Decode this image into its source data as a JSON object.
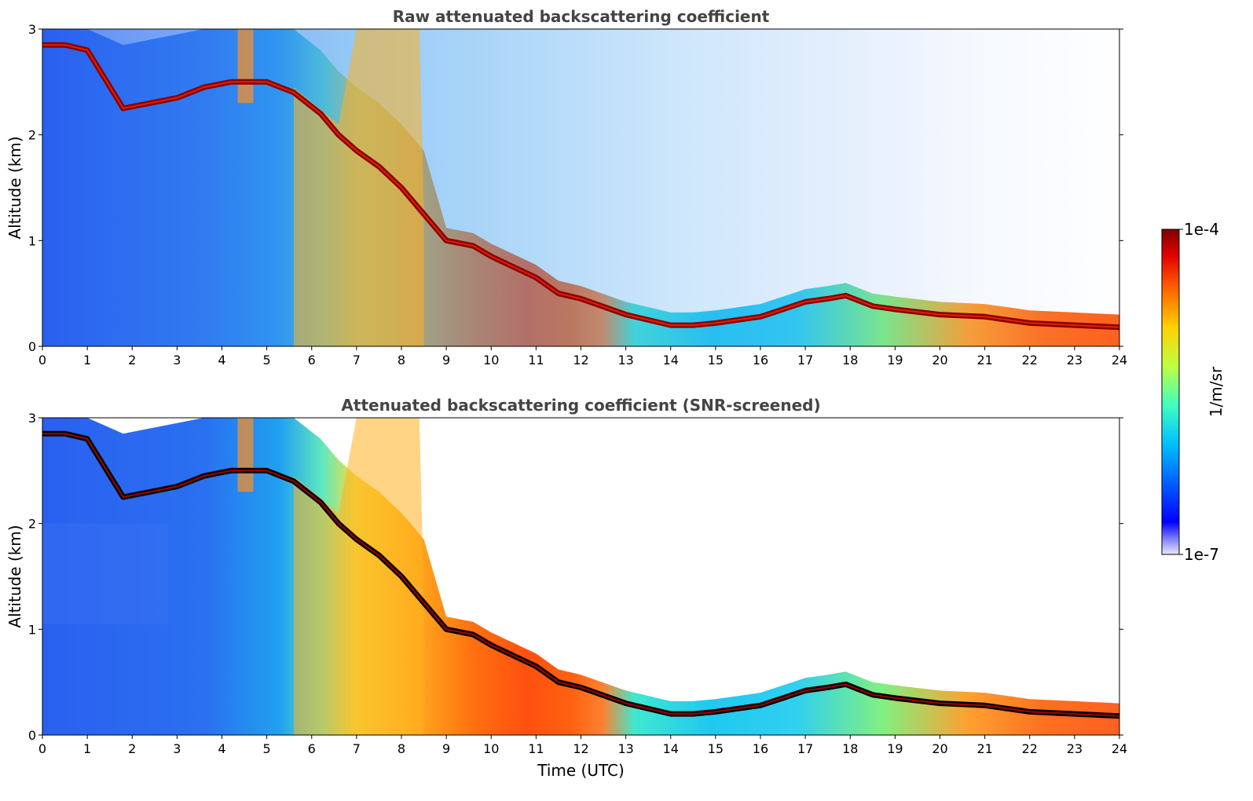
{
  "chart_data": [
    {
      "type": "heatmap",
      "title": "Raw attenuated backscattering coefficient",
      "xlabel": "",
      "ylabel": "Altitude (km)",
      "xlim": [
        0,
        24
      ],
      "ylim": [
        0,
        3
      ],
      "xticks": [
        "0",
        "1",
        "2",
        "3",
        "4",
        "5",
        "6",
        "7",
        "8",
        "9",
        "10",
        "11",
        "12",
        "13",
        "14",
        "15",
        "16",
        "17",
        "18",
        "19",
        "20",
        "21",
        "22",
        "23",
        "24"
      ],
      "yticks": [
        "0",
        "1",
        "2",
        "3"
      ],
      "colormap": "jet",
      "color_scale": "log",
      "color_range": [
        1e-07,
        0.0001
      ],
      "screened": false,
      "cloud_layer": {
        "time_utc": [
          0,
          0.5,
          1.0,
          1.8,
          2.4,
          3.0,
          3.6,
          4.2,
          5.0,
          5.6,
          6.2,
          6.6,
          7.0,
          7.5,
          8.0,
          8.5,
          9.0,
          9.6,
          10.0,
          10.5,
          11.0,
          11.5,
          12.0,
          13.0,
          14.0,
          14.5,
          15.0,
          15.5,
          16.0,
          16.5,
          17.0,
          17.5,
          17.9,
          18.5,
          19.0,
          20.0,
          21.0,
          22.0,
          23.0,
          24.0
        ],
        "altitude_km": [
          2.85,
          2.85,
          2.8,
          2.25,
          2.3,
          2.35,
          2.45,
          2.5,
          2.5,
          2.4,
          2.2,
          2.0,
          1.85,
          1.7,
          1.5,
          1.25,
          1.0,
          0.95,
          0.85,
          0.75,
          0.65,
          0.5,
          0.45,
          0.3,
          0.2,
          0.2,
          0.22,
          0.25,
          0.28,
          0.35,
          0.42,
          0.45,
          0.48,
          0.38,
          0.35,
          0.3,
          0.28,
          0.22,
          0.2,
          0.18
        ]
      }
    },
    {
      "type": "heatmap",
      "title": "Attenuated backscattering coefficient (SNR-screened)",
      "xlabel": "Time (UTC)",
      "ylabel": "Altitude (km)",
      "xlim": [
        0,
        24
      ],
      "ylim": [
        0,
        3
      ],
      "xticks": [
        "0",
        "1",
        "2",
        "3",
        "4",
        "5",
        "6",
        "7",
        "8",
        "9",
        "10",
        "11",
        "12",
        "13",
        "14",
        "15",
        "16",
        "17",
        "18",
        "19",
        "20",
        "21",
        "22",
        "23",
        "24"
      ],
      "yticks": [
        "0",
        "1",
        "2",
        "3"
      ],
      "colormap": "jet",
      "color_scale": "log",
      "color_range": [
        1e-07,
        0.0001
      ],
      "screened": true
    }
  ],
  "colorbar": {
    "label": "1/m/sr",
    "max_label": "1e-4",
    "min_label": "1e-7",
    "colors": [
      "#e8e8f8",
      "#9090ff",
      "#0000ff",
      "#0060ff",
      "#00c0ff",
      "#40ffc0",
      "#c0ff40",
      "#ffd000",
      "#ff6000",
      "#e00000",
      "#800000"
    ]
  }
}
